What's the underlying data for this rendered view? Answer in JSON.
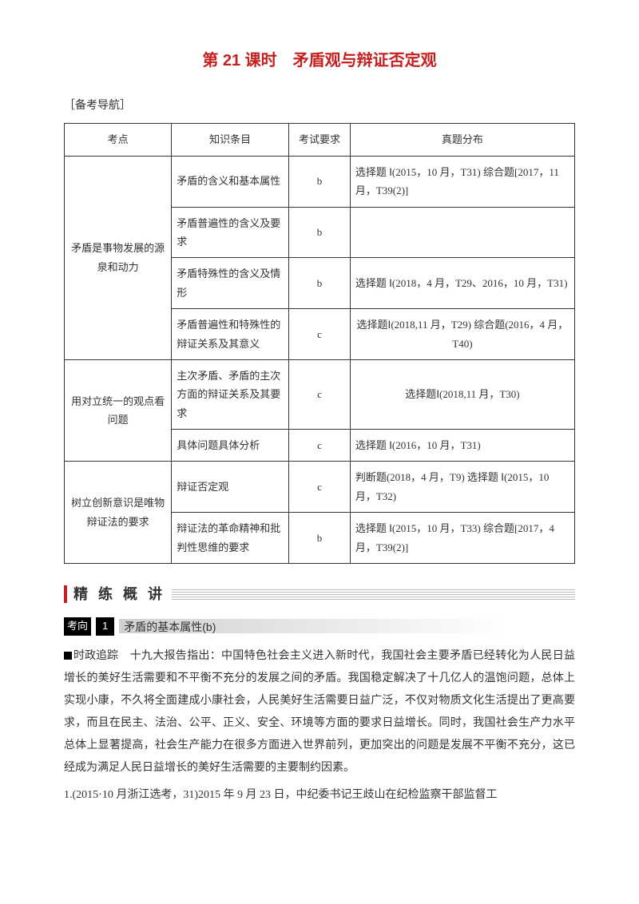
{
  "title": "第 21 课时　矛盾观与辩证否定观",
  "navLabel": "［备考导航］",
  "colors": {
    "accent": "#c52020",
    "text": "#333333",
    "border": "#333333",
    "hatch": "#bdbdbd"
  },
  "table": {
    "headers": {
      "c1": "考点",
      "c2": "知识条目",
      "c3": "考试要求",
      "c4": "真题分布"
    },
    "group1": {
      "kp": "矛盾是事物发展的源泉和动力",
      "r1": {
        "tm": "矛盾的含义和基本属性",
        "rq": "b",
        "dist": "选择题 Ⅰ(2015，10 月，T31) 综合题[2017，11 月，T39(2)]"
      },
      "r2": {
        "tm": "矛盾普遍性的含义及要求",
        "rq": "b",
        "dist": ""
      },
      "r3": {
        "tm": "矛盾特殊性的含义及情形",
        "rq": "b",
        "dist": "选择题 Ⅰ(2018，4 月，T29、2016，10 月，T31)"
      },
      "r4": {
        "tm": "矛盾普遍性和特殊性的辩证关系及其意义",
        "rq": "c",
        "dist": "选择题Ⅰ(2018,11 月，T29) 综合题(2016，4 月，T40)"
      }
    },
    "group2": {
      "kp": "用对立统一的观点看问题",
      "r1": {
        "tm": "主次矛盾、矛盾的主次方面的辩证关系及其要求",
        "rq": "c",
        "dist": "选择题Ⅰ(2018,11 月，T30)"
      },
      "r2": {
        "tm": "具体问题具体分析",
        "rq": "c",
        "dist": "选择题 Ⅰ(2016，10 月，T31)"
      }
    },
    "group3": {
      "kp": "树立创新意识是唯物辩证法的要求",
      "r1": {
        "tm": "辩证否定观",
        "rq": "c",
        "dist": "判断题(2018，4 月，T9) 选择题 Ⅰ(2015，10 月，T32)"
      },
      "r2": {
        "tm": "辩证法的革命精神和批判性思维的要求",
        "rq": "b",
        "dist": "选择题 Ⅰ(2015，10 月，T33) 综合题[2017，4 月，T39(2)]"
      }
    }
  },
  "section": {
    "label": "精 练 概 讲"
  },
  "kaoxiang": {
    "label": "考向",
    "num": "1",
    "title": "矛盾的基本属性(b)"
  },
  "track": {
    "label": "时政追踪",
    "body": "　十九大报告指出：中国特色社会主义进入新时代，我国社会主要矛盾已经转化为人民日益增长的美好生活需要和不平衡不充分的发展之间的矛盾。我国稳定解决了十几亿人的温饱问题，总体上实现小康，不久将全面建成小康社会，人民美好生活需要日益广泛，不仅对物质文化生活提出了更高要求，而且在民主、法治、公平、正义、安全、环境等方面的要求日益增长。同时，我国社会生产力水平总体上显著提高，社会生产能力在很多方面进入世界前列，更加突出的问题是发展不平衡不充分，这已经成为满足人民日益增长的美好生活需要的主要制约因素。"
  },
  "question": "1.(2015·10 月浙江选考，31)2015 年 9 月 23 日，中纪委书记王歧山在纪检监察干部监督工"
}
